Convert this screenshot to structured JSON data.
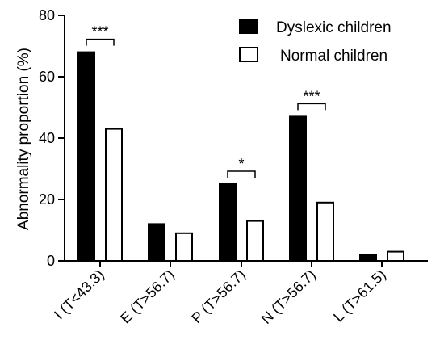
{
  "chart_data": {
    "type": "bar",
    "ylabel": "Abnormality proportion (%)",
    "ylim": [
      0,
      80
    ],
    "yticks": [
      "0",
      "20",
      "40",
      "60",
      "80"
    ],
    "categories": [
      "I (T<43.3)",
      "E (T>56.7)",
      "P (T>56.7)",
      "N (T>56.7)",
      "L (T>61.5)"
    ],
    "series": [
      {
        "name": "Dyslexic children",
        "values": [
          68,
          12,
          25,
          47,
          2
        ],
        "color": "#000000"
      },
      {
        "name": "Normal children",
        "values": [
          43,
          9,
          13,
          19,
          3
        ],
        "color": "#ffffff"
      }
    ],
    "significance": [
      {
        "category_index": 0,
        "label": "***"
      },
      {
        "category_index": 2,
        "label": "*"
      },
      {
        "category_index": 3,
        "label": "***"
      }
    ],
    "legend_position": "top-right",
    "grid": false
  }
}
